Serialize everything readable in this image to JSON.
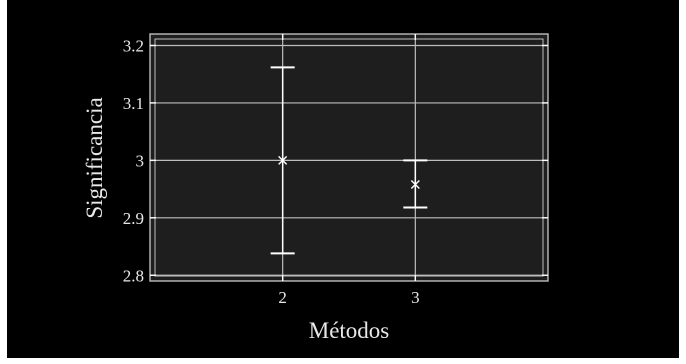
{
  "chart_data": {
    "type": "scatter",
    "title": "",
    "xlabel": "Métodos",
    "ylabel": "Significancia",
    "categories": [
      "2",
      "3"
    ],
    "xlim": [
      1,
      4
    ],
    "ylim": [
      2.79,
      3.22
    ],
    "yticks": [
      "2.8",
      "2.9",
      "3",
      "3.1",
      "3.2"
    ],
    "ytick_values": [
      2.8,
      2.9,
      3.0,
      3.1,
      3.2
    ],
    "grid": true,
    "series": [
      {
        "marker": "x",
        "points": [
          {
            "x": "2",
            "y": 3.0,
            "lower": 2.838,
            "upper": 3.162
          },
          {
            "x": "3",
            "y": 2.958,
            "lower": 2.918,
            "upper": 3.0
          }
        ]
      }
    ],
    "colors": {
      "background": "#000000",
      "plot_background": "#1e1e1e",
      "grid": "#bdbdbd",
      "marks": "#ffffff",
      "text": "#e8e8e8"
    }
  }
}
